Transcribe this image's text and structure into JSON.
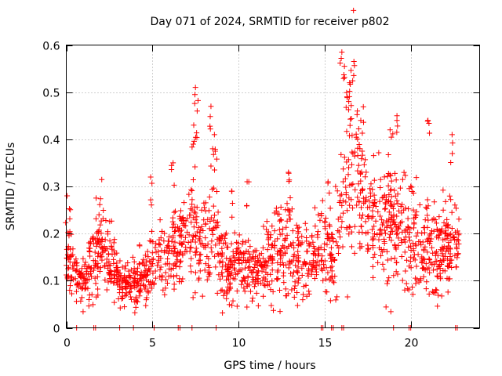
{
  "chart_data": {
    "type": "scatter",
    "title": "Day 071 of 2024, SRMTID for receiver p802",
    "xlabel": "GPS time / hours",
    "ylabel": "SRMTID / TECUs",
    "xlim": [
      0,
      24
    ],
    "ylim": [
      0,
      0.6
    ],
    "xticks": [
      0,
      5,
      10,
      15,
      20
    ],
    "yticks": [
      0,
      0.1,
      0.2,
      0.3,
      0.4,
      0.5,
      0.6
    ],
    "grid": true,
    "marker": "plus",
    "color": "#ff0000",
    "series": [
      {
        "name": "SRMTID",
        "profile": [
          {
            "x": 0.0,
            "y": 0.16
          },
          {
            "x": 0.5,
            "y": 0.11
          },
          {
            "x": 1.0,
            "y": 0.1
          },
          {
            "x": 1.5,
            "y": 0.16
          },
          {
            "x": 2.0,
            "y": 0.17
          },
          {
            "x": 2.5,
            "y": 0.15
          },
          {
            "x": 3.0,
            "y": 0.1
          },
          {
            "x": 3.5,
            "y": 0.09
          },
          {
            "x": 4.0,
            "y": 0.1
          },
          {
            "x": 4.5,
            "y": 0.11
          },
          {
            "x": 5.0,
            "y": 0.13
          },
          {
            "x": 5.5,
            "y": 0.15
          },
          {
            "x": 6.0,
            "y": 0.16
          },
          {
            "x": 6.5,
            "y": 0.17
          },
          {
            "x": 7.0,
            "y": 0.19
          },
          {
            "x": 7.5,
            "y": 0.2
          },
          {
            "x": 8.0,
            "y": 0.18
          },
          {
            "x": 8.5,
            "y": 0.21
          },
          {
            "x": 9.0,
            "y": 0.16
          },
          {
            "x": 9.5,
            "y": 0.12
          },
          {
            "x": 10.0,
            "y": 0.13
          },
          {
            "x": 10.5,
            "y": 0.12
          },
          {
            "x": 11.0,
            "y": 0.11
          },
          {
            "x": 11.5,
            "y": 0.14
          },
          {
            "x": 12.0,
            "y": 0.15
          },
          {
            "x": 12.5,
            "y": 0.17
          },
          {
            "x": 13.0,
            "y": 0.18
          },
          {
            "x": 13.5,
            "y": 0.14
          },
          {
            "x": 14.0,
            "y": 0.14
          },
          {
            "x": 14.5,
            "y": 0.16
          },
          {
            "x": 15.0,
            "y": 0.18
          },
          {
            "x": 15.5,
            "y": 0.14
          },
          {
            "x": 16.0,
            "y": 0.25
          },
          {
            "x": 16.5,
            "y": 0.34
          },
          {
            "x": 17.0,
            "y": 0.3
          },
          {
            "x": 17.5,
            "y": 0.24
          },
          {
            "x": 18.0,
            "y": 0.21
          },
          {
            "x": 18.5,
            "y": 0.22
          },
          {
            "x": 19.0,
            "y": 0.21
          },
          {
            "x": 19.5,
            "y": 0.2
          },
          {
            "x": 20.0,
            "y": 0.18
          },
          {
            "x": 20.5,
            "y": 0.17
          },
          {
            "x": 21.0,
            "y": 0.16
          },
          {
            "x": 21.5,
            "y": 0.16
          },
          {
            "x": 22.0,
            "y": 0.18
          },
          {
            "x": 22.5,
            "y": 0.17
          },
          {
            "x": 22.8,
            "y": 0.17
          }
        ],
        "peaks": [
          {
            "x": 0.05,
            "y": 0.28
          },
          {
            "x": 1.9,
            "y": 0.24
          },
          {
            "x": 4.9,
            "y": 0.32
          },
          {
            "x": 6.2,
            "y": 0.35
          },
          {
            "x": 7.5,
            "y": 0.51
          },
          {
            "x": 7.6,
            "y": 0.46
          },
          {
            "x": 7.4,
            "y": 0.43
          },
          {
            "x": 8.4,
            "y": 0.47
          },
          {
            "x": 8.6,
            "y": 0.41
          },
          {
            "x": 8.5,
            "y": 0.38
          },
          {
            "x": 9.6,
            "y": 0.29
          },
          {
            "x": 10.5,
            "y": 0.31
          },
          {
            "x": 12.9,
            "y": 0.33
          },
          {
            "x": 15.2,
            "y": 0.31
          },
          {
            "x": 16.0,
            "y": 0.585
          },
          {
            "x": 16.15,
            "y": 0.555
          },
          {
            "x": 16.7,
            "y": 0.565
          },
          {
            "x": 16.45,
            "y": 0.52
          },
          {
            "x": 16.3,
            "y": 0.49
          },
          {
            "x": 16.9,
            "y": 0.46
          },
          {
            "x": 17.1,
            "y": 0.44
          },
          {
            "x": 18.8,
            "y": 0.42
          },
          {
            "x": 19.2,
            "y": 0.45
          },
          {
            "x": 21.0,
            "y": 0.44
          },
          {
            "x": 22.4,
            "y": 0.41
          },
          {
            "x": 20.0,
            "y": 0.3
          }
        ],
        "zero_points_x": [
          0.6,
          1.6,
          1.7,
          3.1,
          3.9,
          5.1,
          6.5,
          6.6,
          7.3,
          8.7,
          14.8,
          14.9,
          15.4,
          15.5,
          16.0,
          16.1,
          19.0,
          19.9,
          20.0,
          22.6,
          22.7
        ]
      }
    ]
  }
}
